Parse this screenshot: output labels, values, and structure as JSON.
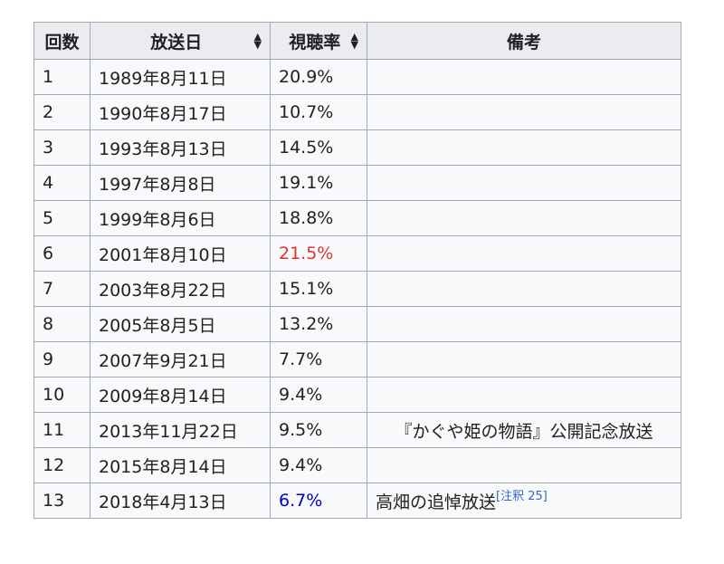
{
  "table": {
    "headers": [
      {
        "label": "回数",
        "sortable": false
      },
      {
        "label": "放送日",
        "sortable": true
      },
      {
        "label": "視聴率",
        "sortable": true
      },
      {
        "label": "備考",
        "sortable": false
      }
    ],
    "sort_icon": "sort-updown-icon",
    "rows": [
      {
        "no": "1",
        "date": "1989年8月11日",
        "rating": "20.9%",
        "note": "",
        "ref": ""
      },
      {
        "no": "2",
        "date": "1990年8月17日",
        "rating": "10.7%",
        "note": "",
        "ref": ""
      },
      {
        "no": "3",
        "date": "1993年8月13日",
        "rating": "14.5%",
        "note": "",
        "ref": ""
      },
      {
        "no": "4",
        "date": "1997年8月8日",
        "rating": "19.1%",
        "note": "",
        "ref": ""
      },
      {
        "no": "5",
        "date": "1999年8月6日",
        "rating": "18.8%",
        "note": "",
        "ref": ""
      },
      {
        "no": "6",
        "date": "2001年8月10日",
        "rating": "21.5%",
        "note": "",
        "ref": "",
        "highlight": "max"
      },
      {
        "no": "7",
        "date": "2003年8月22日",
        "rating": "15.1%",
        "note": "",
        "ref": ""
      },
      {
        "no": "8",
        "date": "2005年8月5日",
        "rating": "13.2%",
        "note": "",
        "ref": ""
      },
      {
        "no": "9",
        "date": "2007年9月21日",
        "rating": "7.7%",
        "note": "",
        "ref": ""
      },
      {
        "no": "10",
        "date": "2009年8月14日",
        "rating": "9.4%",
        "note": "",
        "ref": ""
      },
      {
        "no": "11",
        "date": "2013年11月22日",
        "rating": "9.5%",
        "note": "『かぐや姫の物語』公開記念放送",
        "ref": ""
      },
      {
        "no": "12",
        "date": "2015年8月14日",
        "rating": "9.4%",
        "note": "",
        "ref": ""
      },
      {
        "no": "13",
        "date": "2018年4月13日",
        "rating": "6.7%",
        "note": "高畑の追悼放送",
        "ref": "[注釈 25]",
        "highlight": "min"
      }
    ]
  },
  "colors": {
    "max_rating": "#dd3333",
    "min_rating": "#0000cc",
    "ref_link": "#3366cc",
    "header_bg": "#eaecf0",
    "cell_bg": "#f8f9fa",
    "border": "#a2a9b1"
  }
}
